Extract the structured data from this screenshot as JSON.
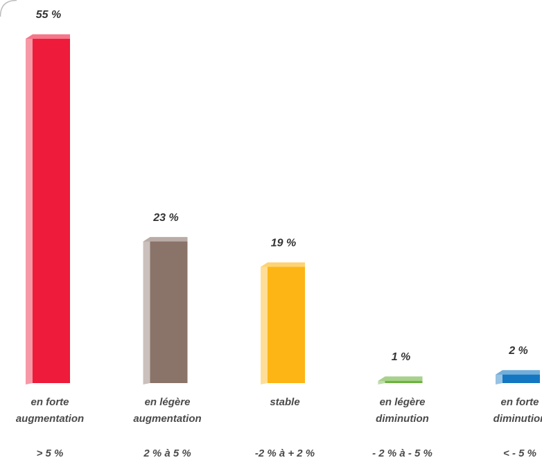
{
  "chart_data": {
    "type": "bar",
    "categories": [
      [
        "en forte",
        "augmentation"
      ],
      [
        "en légère",
        "augmentation"
      ],
      [
        "stable"
      ],
      [
        "en légère",
        "diminution"
      ],
      [
        "en forte",
        "diminution"
      ]
    ],
    "ranges": [
      "> 5 %",
      "2 % à 5 %",
      "-2 % à + 2 %",
      "- 2 % à - 5 %",
      "< - 5 %"
    ],
    "values": [
      55,
      23,
      19,
      1,
      2
    ],
    "value_labels": [
      "55 %",
      "23 %",
      "19 %",
      "1 %",
      "2 %"
    ],
    "colors": [
      "#ee1b3a",
      "#8a7369",
      "#fdb515",
      "#6db33f",
      "#1577c1"
    ]
  }
}
